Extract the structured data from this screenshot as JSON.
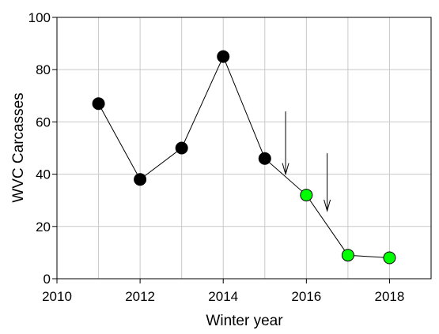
{
  "chart_data": {
    "type": "scatter",
    "title": "",
    "xlabel": "Winter year",
    "ylabel": "WVC Carcasses",
    "xlim": [
      2010,
      2019
    ],
    "ylim": [
      0,
      100
    ],
    "xticks": [
      2010,
      2012,
      2014,
      2016,
      2018
    ],
    "yticks": [
      0,
      20,
      40,
      60,
      80,
      100
    ],
    "grid": true,
    "legend": "none",
    "series": [
      {
        "x": [
          2011,
          2012,
          2013,
          2014,
          2015,
          2016,
          2017,
          2018
        ],
        "y": [
          67,
          38,
          50,
          85,
          46,
          32,
          9,
          8
        ],
        "marker_colors": [
          "#000000",
          "#000000",
          "#000000",
          "#000000",
          "#000000",
          "#00ff00",
          "#00ff00",
          "#00ff00"
        ],
        "line_color": "#000000"
      }
    ],
    "annotations": [
      {
        "type": "arrow",
        "x": 2015.5,
        "y_from": 64,
        "y_to": 40
      },
      {
        "type": "arrow",
        "x": 2016.5,
        "y_from": 48,
        "y_to": 26
      }
    ]
  }
}
